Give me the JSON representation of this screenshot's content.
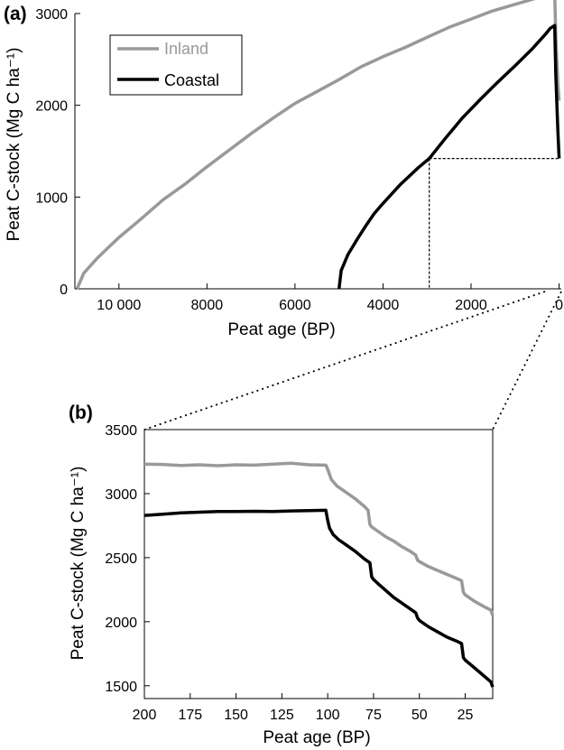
{
  "colors": {
    "inland": "#999999",
    "coastal": "#000000",
    "axis": "#000000"
  },
  "chart_data": [
    {
      "panel_label": "(a)",
      "type": "line",
      "xlabel": "Peat age (BP)",
      "ylabel": "Peat C-stock (Mg C ha⁻¹)",
      "xlim": [
        11000,
        -50
      ],
      "ylim": [
        0,
        3000
      ],
      "x_ticks": [
        10000,
        8000,
        6000,
        4000,
        2000,
        0
      ],
      "x_tick_labels": [
        "10 000",
        "8000",
        "6000",
        "4000",
        "2000",
        "0"
      ],
      "y_ticks": [
        0,
        1000,
        2000,
        3000
      ],
      "y_tick_labels": [
        "0",
        "1000",
        "2000",
        "3000"
      ],
      "legend": {
        "placement": "top-left",
        "entries": [
          "Inland",
          "Coastal"
        ]
      },
      "reference_point": {
        "x": 2950,
        "y": 1420
      },
      "series": [
        {
          "name": "Inland",
          "x": [
            10950,
            10800,
            10500,
            10000,
            9500,
            9000,
            8500,
            8000,
            7500,
            7000,
            6500,
            6000,
            5500,
            5000,
            4500,
            4000,
            3500,
            3000,
            2500,
            2000,
            1500,
            1000,
            500,
            200,
            100,
            75,
            50,
            25,
            0
          ],
          "y": [
            0,
            170,
            330,
            560,
            760,
            970,
            1140,
            1330,
            1510,
            1690,
            1860,
            2020,
            2150,
            2280,
            2420,
            2530,
            2630,
            2740,
            2850,
            2940,
            3030,
            3100,
            3170,
            3230,
            3220,
            2750,
            2480,
            2230,
            2050
          ]
        },
        {
          "name": "Coastal",
          "x": [
            5000,
            4950,
            4800,
            4600,
            4400,
            4200,
            4000,
            3600,
            3200,
            2950,
            2600,
            2200,
            1800,
            1400,
            1000,
            600,
            300,
            200,
            100,
            75,
            50,
            25,
            0
          ],
          "y": [
            0,
            200,
            370,
            530,
            680,
            820,
            930,
            1140,
            1320,
            1420,
            1630,
            1860,
            2060,
            2250,
            2430,
            2620,
            2780,
            2840,
            2870,
            2340,
            2010,
            1700,
            1420
          ]
        }
      ]
    },
    {
      "panel_label": "(b)",
      "type": "line",
      "xlabel": "Peat age (BP)",
      "ylabel": "Peat C-stock (Mg C ha⁻¹)",
      "xlim": [
        200,
        10
      ],
      "ylim": [
        1400,
        3500
      ],
      "x_ticks": [
        200,
        175,
        150,
        125,
        100,
        75,
        50,
        25
      ],
      "x_tick_labels": [
        "200",
        "175",
        "150",
        "125",
        "100",
        "75",
        "50",
        "25"
      ],
      "y_ticks": [
        1500,
        2000,
        2500,
        3000,
        3500
      ],
      "y_tick_labels": [
        "1500",
        "2000",
        "2500",
        "3000",
        "3500"
      ],
      "series": [
        {
          "name": "Inland",
          "x": [
            200,
            190,
            180,
            170,
            160,
            150,
            140,
            130,
            120,
            110,
            101,
            100,
            98,
            95,
            90,
            85,
            80,
            78,
            77,
            76,
            72,
            68,
            64,
            60,
            55,
            52,
            51,
            50,
            45,
            40,
            35,
            30,
            27,
            26,
            25,
            20,
            15,
            11,
            10
          ],
          "y": [
            3230,
            3228,
            3220,
            3225,
            3218,
            3225,
            3222,
            3230,
            3238,
            3225,
            3222,
            3190,
            3110,
            3060,
            3010,
            2960,
            2900,
            2870,
            2760,
            2740,
            2700,
            2660,
            2630,
            2590,
            2550,
            2520,
            2480,
            2470,
            2430,
            2400,
            2370,
            2340,
            2320,
            2230,
            2210,
            2160,
            2120,
            2090,
            2050
          ]
        },
        {
          "name": "Coastal",
          "x": [
            200,
            190,
            180,
            170,
            160,
            150,
            140,
            130,
            120,
            110,
            101,
            100,
            99,
            97,
            94,
            90,
            85,
            80,
            77,
            76,
            75,
            72,
            68,
            64,
            60,
            55,
            52,
            51,
            50,
            45,
            40,
            35,
            30,
            27,
            26,
            25,
            20,
            15,
            11,
            10
          ],
          "y": [
            2830,
            2840,
            2850,
            2855,
            2860,
            2860,
            2862,
            2860,
            2865,
            2868,
            2870,
            2790,
            2730,
            2680,
            2640,
            2600,
            2550,
            2490,
            2460,
            2350,
            2330,
            2290,
            2240,
            2190,
            2150,
            2100,
            2070,
            2030,
            2010,
            1960,
            1920,
            1880,
            1850,
            1830,
            1720,
            1700,
            1640,
            1580,
            1530,
            1490
          ]
        }
      ]
    }
  ]
}
